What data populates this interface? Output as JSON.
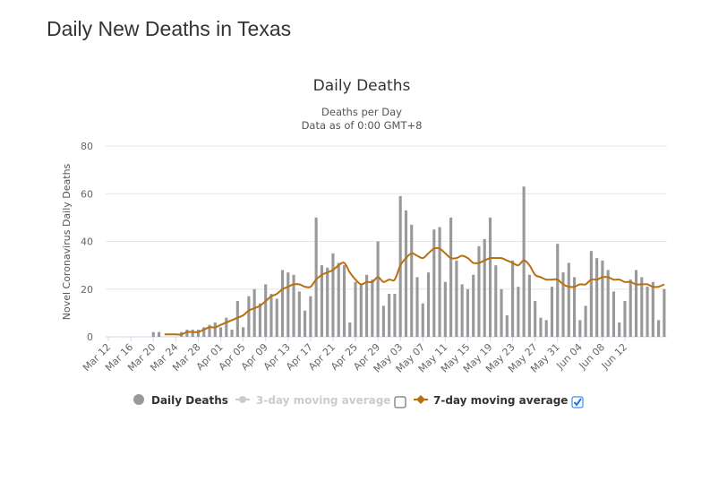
{
  "page": {
    "title": "Daily New Deaths in Texas"
  },
  "chart_data": {
    "type": "bar",
    "title": "Daily Deaths",
    "subtitle_lines": [
      "Deaths per Day",
      "Data as of 0:00 GMT+8"
    ],
    "ylabel": "Novel Coronavirus Daily Deaths",
    "xlabel": "",
    "ylim": [
      0,
      80
    ],
    "yticks": [
      0,
      20,
      40,
      60,
      80
    ],
    "grid": true,
    "xtick_labels": [
      "Mar 12",
      "Mar 16",
      "Mar 20",
      "Mar 24",
      "Mar 28",
      "Apr 01",
      "Apr 05",
      "Apr 09",
      "Apr 13",
      "Apr 17",
      "Apr 21",
      "Apr 25",
      "Apr 29",
      "May 03",
      "May 07",
      "May 11",
      "May 15",
      "May 19",
      "May 23",
      "May 27",
      "May 31",
      "Jun 04",
      "Jun 08",
      "Jun 12"
    ],
    "xtick_every_days": 4,
    "start_date": "Mar 12",
    "series": [
      {
        "name": "Daily Deaths",
        "color": "#999999",
        "values": [
          0,
          0,
          0,
          0,
          0,
          0,
          0,
          0,
          2,
          2,
          0,
          0,
          0,
          2,
          3,
          3,
          3,
          4,
          5,
          6,
          4,
          8,
          3,
          15,
          4,
          17,
          20,
          14,
          22,
          18,
          16,
          28,
          27,
          26,
          19,
          11,
          17,
          50,
          30,
          29,
          35,
          31,
          30,
          6,
          23,
          22,
          26,
          24,
          40,
          13,
          18,
          18,
          59,
          53,
          47,
          25,
          14,
          27,
          45,
          46,
          23,
          50,
          32,
          22,
          20,
          26,
          38,
          41,
          50,
          30,
          20,
          9,
          32,
          21,
          63,
          26,
          15,
          8,
          7,
          21,
          39,
          27,
          31,
          25,
          7,
          13,
          36,
          33,
          32,
          28,
          19,
          6,
          15,
          24,
          28,
          25,
          21,
          23,
          7,
          20
        ]
      },
      {
        "name": "3-day moving average",
        "color": "#cccccc",
        "visible": false
      },
      {
        "name": "7-day moving average",
        "color": "#b8700f",
        "values": [
          null,
          null,
          null,
          null,
          null,
          null,
          null,
          null,
          null,
          null,
          1,
          1,
          1,
          1,
          2,
          2,
          2,
          3,
          4,
          4,
          5,
          6,
          7,
          8,
          9,
          11,
          12,
          13,
          15,
          17,
          18,
          20,
          21,
          22,
          22,
          21,
          21,
          24,
          26,
          27,
          28,
          30,
          31,
          27,
          24,
          22,
          23,
          23,
          25,
          23,
          24,
          24,
          30,
          33,
          35,
          34,
          33,
          35,
          37,
          37,
          35,
          33,
          33,
          34,
          33,
          31,
          31,
          32,
          33,
          33,
          33,
          32,
          31,
          30,
          32,
          30,
          26,
          25,
          24,
          24,
          24,
          22,
          21,
          21,
          22,
          22,
          24,
          24,
          25,
          25,
          24,
          24,
          23,
          23,
          22,
          22,
          22,
          21,
          21,
          22
        ]
      }
    ]
  },
  "legend": [
    {
      "label": "Daily Deaths",
      "marker": "circle",
      "color": "#999999",
      "text_color": "#333333",
      "has_checkbox": false
    },
    {
      "label": "3-day moving average",
      "marker": "line-circle",
      "color": "#cccccc",
      "text_color": "#cccccc",
      "has_checkbox": true,
      "checked": false
    },
    {
      "label": "7-day moving average",
      "marker": "line-diamond",
      "color": "#b8700f",
      "text_color": "#333333",
      "has_checkbox": true,
      "checked": true
    }
  ]
}
